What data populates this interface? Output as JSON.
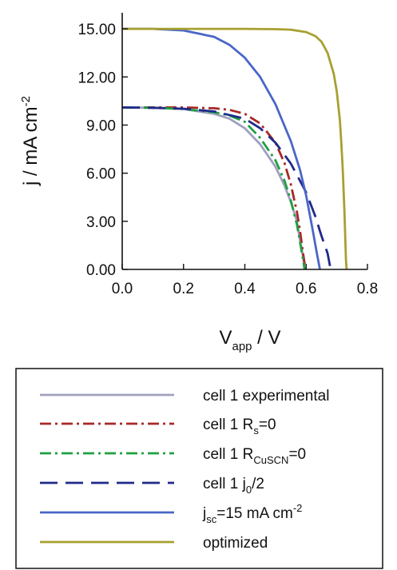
{
  "chart_data": {
    "type": "line",
    "xlabel": {
      "main": "V",
      "sub": "app",
      "tail": " / V"
    },
    "ylabel": {
      "main": "j / mA cm",
      "sup": "-2"
    },
    "xlim": [
      0,
      0.8
    ],
    "ylim": [
      0,
      16
    ],
    "x_ticks": [
      0,
      0.2,
      0.4,
      0.6,
      0.8
    ],
    "x_tick_labels": [
      "0.0",
      "0.2",
      "0.4",
      "0.6",
      "0.8"
    ],
    "y_ticks": [
      0,
      3,
      6,
      9,
      12,
      15
    ],
    "y_tick_labels": [
      "0.00",
      "3.00",
      "6.00",
      "9.00",
      "12.00",
      "15.00"
    ],
    "grid": false,
    "legend_position": "bottom",
    "series": [
      {
        "legend": [
          {
            "t": "cell 1 experimental"
          }
        ],
        "color": "#a0a0c0",
        "dash": "solid",
        "points": [
          [
            0,
            10.1
          ],
          [
            0.1,
            10.08
          ],
          [
            0.2,
            10.0
          ],
          [
            0.3,
            9.7
          ],
          [
            0.35,
            9.4
          ],
          [
            0.4,
            8.8
          ],
          [
            0.45,
            7.8
          ],
          [
            0.5,
            6.4
          ],
          [
            0.53,
            5.2
          ],
          [
            0.55,
            4.2
          ],
          [
            0.57,
            3.0
          ],
          [
            0.58,
            1.8
          ],
          [
            0.59,
            0.8
          ],
          [
            0.595,
            0
          ]
        ]
      },
      {
        "legend": [
          {
            "t": "cell 1 R"
          },
          {
            "t": "s",
            "sub": true
          },
          {
            "t": "=0"
          }
        ],
        "color": "#a82828",
        "dash": "dashdot",
        "points": [
          [
            0,
            10.1
          ],
          [
            0.1,
            10.1
          ],
          [
            0.2,
            10.1
          ],
          [
            0.3,
            10.05
          ],
          [
            0.35,
            9.95
          ],
          [
            0.4,
            9.7
          ],
          [
            0.45,
            9.1
          ],
          [
            0.5,
            7.9
          ],
          [
            0.53,
            6.6
          ],
          [
            0.55,
            5.3
          ],
          [
            0.57,
            3.6
          ],
          [
            0.58,
            2.4
          ],
          [
            0.59,
            1.0
          ],
          [
            0.598,
            0
          ]
        ]
      },
      {
        "legend": [
          {
            "t": "cell 1 R"
          },
          {
            "t": "CuSCN",
            "sub": true
          },
          {
            "t": "=0"
          }
        ],
        "color": "#20a040",
        "dash": "dashdot",
        "points": [
          [
            0,
            10.1
          ],
          [
            0.1,
            10.08
          ],
          [
            0.2,
            10.0
          ],
          [
            0.3,
            9.8
          ],
          [
            0.35,
            9.6
          ],
          [
            0.4,
            9.2
          ],
          [
            0.45,
            8.2
          ],
          [
            0.5,
            6.8
          ],
          [
            0.53,
            5.5
          ],
          [
            0.55,
            4.3
          ],
          [
            0.57,
            2.8
          ],
          [
            0.58,
            1.7
          ],
          [
            0.59,
            0.6
          ],
          [
            0.595,
            0
          ]
        ]
      },
      {
        "legend": [
          {
            "t": "cell 1 j"
          },
          {
            "t": "0",
            "sub": true
          },
          {
            "t": "/2"
          }
        ],
        "color": "#1f2a8a",
        "dash": "longdash",
        "points": [
          [
            0,
            10.1
          ],
          [
            0.1,
            10.08
          ],
          [
            0.2,
            10.02
          ],
          [
            0.3,
            9.85
          ],
          [
            0.4,
            9.4
          ],
          [
            0.45,
            8.8
          ],
          [
            0.5,
            7.9
          ],
          [
            0.55,
            6.6
          ],
          [
            0.6,
            4.8
          ],
          [
            0.63,
            3.3
          ],
          [
            0.65,
            2.1
          ],
          [
            0.67,
            1.0
          ],
          [
            0.68,
            0
          ]
        ]
      },
      {
        "legend": [
          {
            "t": "j"
          },
          {
            "t": "sc",
            "sub": true
          },
          {
            "t": "=15 mA cm"
          },
          {
            "t": "-2",
            "sup": true
          }
        ],
        "color": "#4a66c8",
        "dash": "solid",
        "points": [
          [
            0,
            15.0
          ],
          [
            0.1,
            15.0
          ],
          [
            0.2,
            14.9
          ],
          [
            0.3,
            14.5
          ],
          [
            0.35,
            14.0
          ],
          [
            0.4,
            13.2
          ],
          [
            0.45,
            12.0
          ],
          [
            0.5,
            10.3
          ],
          [
            0.55,
            8.0
          ],
          [
            0.58,
            6.2
          ],
          [
            0.6,
            4.6
          ],
          [
            0.62,
            2.6
          ],
          [
            0.635,
            1.0
          ],
          [
            0.645,
            0
          ]
        ]
      },
      {
        "legend": [
          {
            "t": "optimized"
          }
        ],
        "color": "#a8a030",
        "dash": "solid",
        "points": [
          [
            0,
            15.0
          ],
          [
            0.2,
            15.0
          ],
          [
            0.4,
            15.0
          ],
          [
            0.5,
            14.98
          ],
          [
            0.55,
            14.95
          ],
          [
            0.6,
            14.8
          ],
          [
            0.63,
            14.55
          ],
          [
            0.65,
            14.2
          ],
          [
            0.67,
            13.5
          ],
          [
            0.69,
            12.2
          ],
          [
            0.7,
            11.1
          ],
          [
            0.71,
            9.3
          ],
          [
            0.715,
            7.8
          ],
          [
            0.72,
            6.0
          ],
          [
            0.725,
            3.6
          ],
          [
            0.73,
            0.6
          ],
          [
            0.732,
            0
          ]
        ]
      }
    ]
  }
}
